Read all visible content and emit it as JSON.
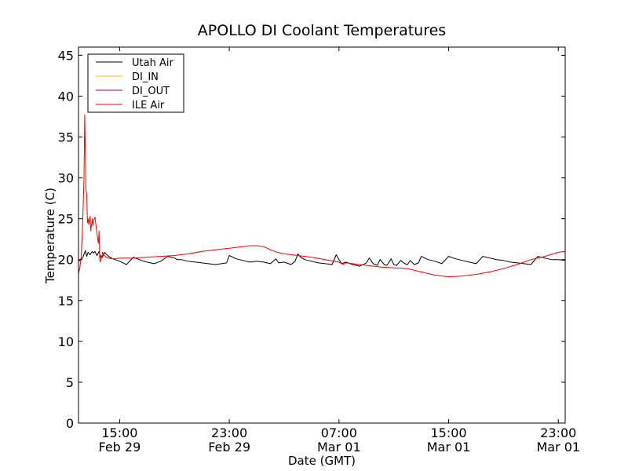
{
  "chart_data": {
    "type": "line",
    "title": "APOLLO DI Coolant Temperatures",
    "xlabel": "Date (GMT)",
    "ylabel": "Temperature (C)",
    "xlim_hours": [
      0,
      35.5
    ],
    "ylim": [
      0,
      46
    ],
    "yticks": [
      0,
      5,
      10,
      15,
      20,
      25,
      30,
      35,
      40,
      45
    ],
    "xticks": [
      {
        "hour": 3,
        "time": "15:00",
        "date": "Feb 29"
      },
      {
        "hour": 11,
        "time": "23:00",
        "date": "Feb 29"
      },
      {
        "hour": 19,
        "time": "07:00",
        "date": "Mar 01"
      },
      {
        "hour": 27,
        "time": "15:00",
        "date": "Mar 01"
      },
      {
        "hour": 35,
        "time": "23:00",
        "date": "Mar 01"
      }
    ],
    "legend": "upper-left",
    "series": [
      {
        "name": "Utah Air",
        "color": "#000000",
        "x": [
          0,
          0.2,
          0.35,
          0.5,
          0.6,
          0.7,
          0.85,
          1.0,
          1.1,
          1.2,
          1.35,
          1.5,
          1.6,
          1.7,
          1.8,
          1.9,
          2.0,
          2.2,
          2.5,
          3.0,
          3.5,
          4.0,
          4.3,
          4.6,
          5.0,
          5.5,
          6.0,
          6.5,
          7.0,
          7.2,
          7.5,
          8.0,
          9.0,
          10.0,
          10.8,
          11.0,
          11.5,
          12.0,
          12.5,
          13.0,
          13.5,
          14.0,
          14.4,
          14.6,
          15.0,
          15.5,
          15.8,
          16.0,
          16.2,
          16.5,
          17.0,
          17.5,
          18.0,
          18.5,
          18.8,
          19.0,
          19.2,
          19.5,
          20.0,
          20.5,
          21.0,
          21.2,
          21.5,
          21.8,
          22.0,
          22.3,
          22.5,
          22.8,
          23.0,
          23.2,
          23.5,
          23.8,
          24.0,
          24.2,
          24.5,
          24.8,
          25.0,
          25.5,
          26.0,
          26.5,
          27.0,
          27.5,
          28.0,
          28.5,
          29.0,
          29.5,
          30.0,
          30.5,
          31.0,
          31.5,
          32.0,
          32.5,
          33.0,
          33.5,
          34.0,
          34.5,
          35.0,
          35.5
        ],
        "y": [
          19.8,
          20.0,
          20.4,
          21.1,
          20.4,
          20.9,
          20.6,
          21.0,
          20.8,
          21.0,
          20.5,
          21.0,
          20.3,
          20.2,
          20.5,
          20.9,
          20.7,
          20.4,
          20.1,
          19.8,
          19.4,
          20.3,
          20.1,
          19.9,
          19.7,
          19.5,
          19.8,
          20.4,
          20.2,
          20.0,
          20.0,
          19.8,
          19.6,
          19.4,
          19.6,
          20.5,
          20.1,
          19.9,
          19.7,
          19.8,
          19.7,
          19.5,
          20.1,
          19.6,
          19.7,
          19.4,
          19.8,
          20.7,
          20.3,
          20.0,
          19.8,
          19.6,
          19.5,
          19.4,
          20.6,
          20.0,
          19.5,
          19.7,
          19.4,
          19.2,
          19.6,
          20.2,
          19.5,
          19.3,
          20.0,
          19.4,
          19.3,
          20.1,
          19.4,
          19.3,
          19.9,
          19.5,
          19.4,
          19.9,
          19.4,
          19.6,
          20.4,
          20.0,
          19.8,
          19.5,
          20.4,
          20.1,
          19.9,
          19.7,
          19.5,
          20.4,
          20.2,
          20.0,
          19.9,
          19.7,
          19.6,
          19.5,
          19.4,
          20.4,
          20.2,
          20.0,
          20.0,
          19.9
        ]
      },
      {
        "name": "DI_IN",
        "color": "#ffc000",
        "x": [],
        "y": []
      },
      {
        "name": "DI_OUT",
        "color": "#800080",
        "x": [],
        "y": []
      },
      {
        "name": "ILE Air",
        "color": "#ff0000",
        "x": [
          0,
          0.1,
          0.2,
          0.3,
          0.4,
          0.45,
          0.5,
          0.55,
          0.6,
          0.65,
          0.7,
          0.75,
          0.8,
          0.85,
          0.9,
          1.0,
          1.05,
          1.1,
          1.15,
          1.2,
          1.3,
          1.4,
          1.45,
          1.5,
          1.55,
          1.6,
          1.65,
          1.7,
          1.75,
          1.8,
          1.9,
          2.0,
          2.2,
          2.5,
          3.0,
          3.5,
          4.0,
          5.0,
          6.0,
          7.0,
          8.0,
          9.0,
          10.0,
          11.0,
          12.0,
          12.5,
          13.0,
          13.5,
          14.0,
          14.5,
          15.0,
          16.0,
          17.0,
          18.0,
          19.0,
          19.3,
          19.5,
          20.0,
          21.0,
          22.0,
          23.0,
          24.0,
          25.0,
          26.0,
          27.0,
          28.0,
          29.0,
          30.0,
          31.0,
          32.0,
          33.0,
          34.0,
          35.0,
          35.5
        ],
        "y": [
          18.3,
          19.0,
          20.5,
          24.0,
          30.0,
          37.7,
          33.0,
          28.5,
          28.0,
          24.5,
          25.0,
          24.3,
          24.8,
          25.3,
          23.5,
          25.0,
          24.2,
          24.8,
          25.0,
          25.2,
          23.8,
          22.5,
          22.0,
          23.5,
          20.0,
          19.7,
          20.5,
          20.2,
          20.9,
          20.7,
          20.5,
          20.3,
          20.2,
          20.1,
          20.2,
          20.2,
          20.2,
          20.3,
          20.4,
          20.5,
          20.7,
          21.0,
          21.2,
          21.4,
          21.6,
          21.7,
          21.7,
          21.6,
          21.2,
          20.9,
          20.7,
          20.5,
          20.3,
          20.0,
          19.7,
          19.4,
          19.6,
          19.5,
          19.3,
          19.1,
          19.0,
          18.9,
          18.5,
          18.1,
          17.9,
          18.0,
          18.2,
          18.5,
          18.9,
          19.4,
          20.0,
          20.4,
          20.9,
          21.0
        ]
      }
    ]
  }
}
